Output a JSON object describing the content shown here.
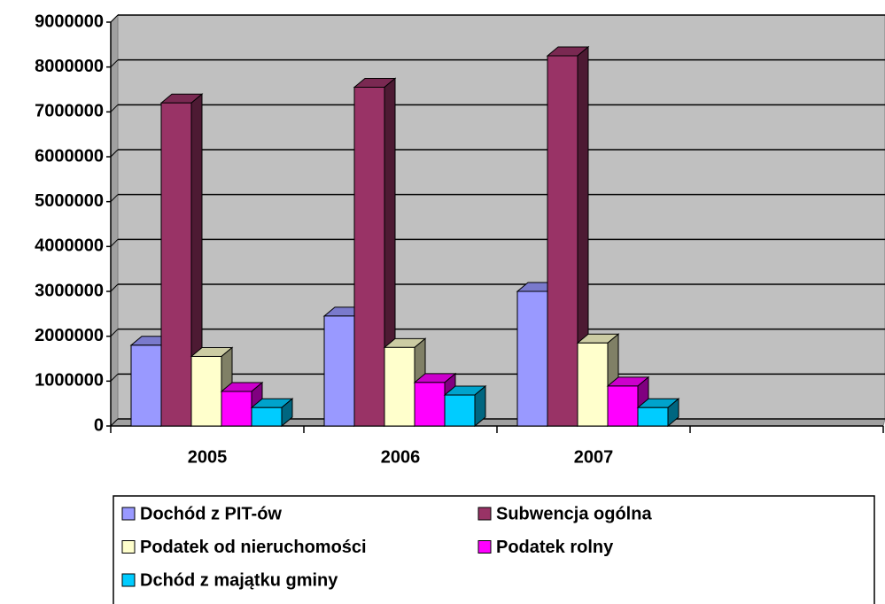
{
  "chart_data": {
    "type": "bar",
    "categories": [
      "2005",
      "2006",
      "2007",
      null
    ],
    "series": [
      {
        "name": "Dochód z PIT-ów",
        "color": "#9999ff",
        "values": [
          1800000,
          2450000,
          3000000,
          null
        ]
      },
      {
        "name": "Subwencja ogólna",
        "color": "#993366",
        "values": [
          7200000,
          7550000,
          8250000,
          null
        ]
      },
      {
        "name": "Podatek od nieruchomości",
        "color": "#ffffcc",
        "values": [
          1550000,
          1750000,
          1850000,
          null
        ]
      },
      {
        "name": "Podatek rolny",
        "color": "#ff00ff",
        "values": [
          770000,
          970000,
          890000,
          null
        ]
      },
      {
        "name": "Dchód z majątku gminy",
        "color": "#00ccff",
        "values": [
          410000,
          690000,
          410000,
          null
        ]
      }
    ],
    "ylim": [
      0,
      9000000
    ],
    "yticks": [
      0,
      1000000,
      2000000,
      3000000,
      4000000,
      5000000,
      6000000,
      7000000,
      8000000,
      9000000
    ],
    "grid": true
  }
}
